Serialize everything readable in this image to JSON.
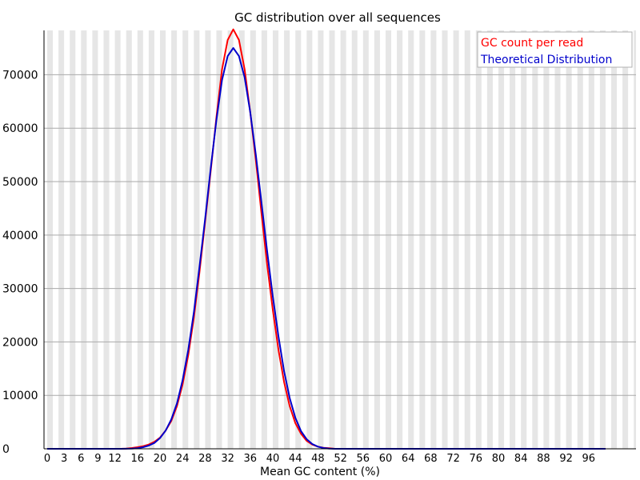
{
  "chart_data": {
    "type": "line",
    "title": "GC distribution over all sequences",
    "xlabel": "Mean GC content (%)",
    "ylabel": "",
    "xlim": [
      0,
      100
    ],
    "ylim": [
      0,
      78000
    ],
    "yticks": [
      0,
      10000,
      20000,
      30000,
      40000,
      50000,
      60000,
      70000
    ],
    "xtick_labels": [
      "0",
      "3",
      "6",
      "9",
      "12",
      "16",
      "20",
      "24",
      "28",
      "32",
      "36",
      "40",
      "44",
      "48",
      "52",
      "56",
      "60",
      "64",
      "68",
      "72",
      "76",
      "80",
      "84",
      "88",
      "92",
      "96"
    ],
    "grid": "horizontal lines with alternating vertical grey bands",
    "legend_position": "top-right",
    "x": [
      0,
      1,
      2,
      3,
      4,
      5,
      6,
      7,
      8,
      9,
      10,
      11,
      12,
      13,
      14,
      15,
      16,
      17,
      18,
      19,
      20,
      21,
      22,
      23,
      24,
      25,
      26,
      27,
      28,
      29,
      30,
      31,
      32,
      33,
      34,
      35,
      36,
      37,
      38,
      39,
      40,
      41,
      42,
      43,
      44,
      45,
      46,
      47,
      48,
      49,
      50,
      51,
      52,
      53,
      54,
      55,
      56,
      57,
      58,
      59,
      60,
      61,
      62,
      63,
      64,
      65,
      66,
      67,
      68,
      69,
      70,
      71,
      72,
      73,
      74,
      75,
      76,
      77,
      78,
      79,
      80,
      81,
      82,
      83,
      84,
      85,
      86,
      87,
      88,
      89,
      90,
      91,
      92,
      93,
      94,
      95,
      96,
      97,
      98,
      99,
      100
    ],
    "series": [
      {
        "name": "GC count per read",
        "color": "#ff0000",
        "values": [
          0,
          0,
          0,
          0,
          0,
          0,
          0,
          0,
          0,
          0,
          0,
          0,
          0,
          0,
          50,
          150,
          300,
          500,
          800,
          1300,
          2100,
          3400,
          5200,
          8000,
          12000,
          17500,
          24500,
          33000,
          42500,
          52000,
          62000,
          71000,
          76500,
          78500,
          76500,
          71000,
          63000,
          54000,
          44000,
          34500,
          26000,
          18500,
          12500,
          8000,
          4800,
          2800,
          1500,
          800,
          400,
          200,
          100,
          0,
          0,
          0,
          0,
          0,
          0,
          0,
          0,
          0,
          0,
          0,
          0,
          0,
          0,
          0,
          0,
          0,
          0,
          0,
          0,
          0,
          0,
          0,
          0,
          0,
          0,
          0,
          0,
          0,
          0,
          0,
          0,
          0,
          0,
          0,
          0,
          0,
          0,
          0,
          0,
          0,
          0,
          0,
          0,
          0,
          0,
          0,
          0,
          0,
          0
        ]
      },
      {
        "name": "Theoretical Distribution",
        "color": "#0000cc",
        "values": [
          0,
          0,
          0,
          0,
          0,
          0,
          0,
          0,
          0,
          0,
          0,
          0,
          0,
          0,
          10,
          40,
          120,
          300,
          600,
          1100,
          2000,
          3400,
          5500,
          8500,
          12800,
          18500,
          25500,
          34000,
          43000,
          52500,
          61500,
          69000,
          73500,
          75000,
          73500,
          69500,
          63000,
          55000,
          46000,
          37000,
          28500,
          21000,
          14500,
          9500,
          5800,
          3300,
          1800,
          900,
          400,
          150,
          50,
          0,
          0,
          0,
          0,
          0,
          0,
          0,
          0,
          0,
          0,
          0,
          0,
          0,
          0,
          0,
          0,
          0,
          0,
          0,
          0,
          0,
          0,
          0,
          0,
          0,
          0,
          0,
          0,
          0,
          0,
          0,
          0,
          0,
          0,
          0,
          0,
          0,
          0,
          0,
          0,
          0,
          0,
          0,
          0,
          0,
          0,
          0,
          0,
          0,
          0
        ]
      }
    ]
  }
}
